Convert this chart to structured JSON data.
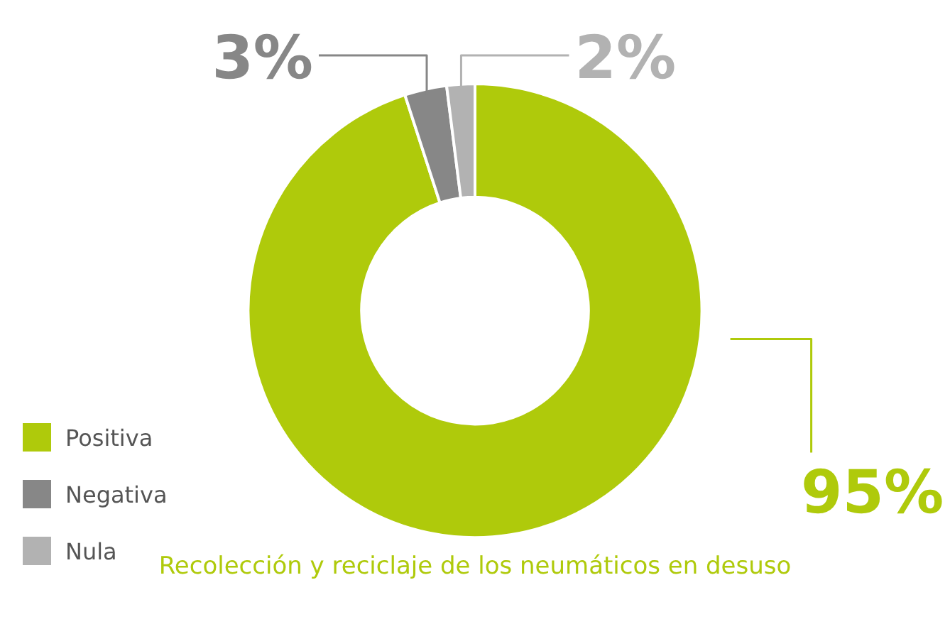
{
  "chart_data": {
    "type": "donut",
    "title": "Recolección y reciclaje de los neumáticos en desuso",
    "categories": [
      "Positiva",
      "Negativa",
      "Nula"
    ],
    "values": [
      95,
      3,
      2
    ],
    "colors": [
      "#afca0b",
      "#878787",
      "#b2b2b2"
    ],
    "value_labels": [
      "95%",
      "3%",
      "2%"
    ],
    "legend": "bottom left"
  }
}
